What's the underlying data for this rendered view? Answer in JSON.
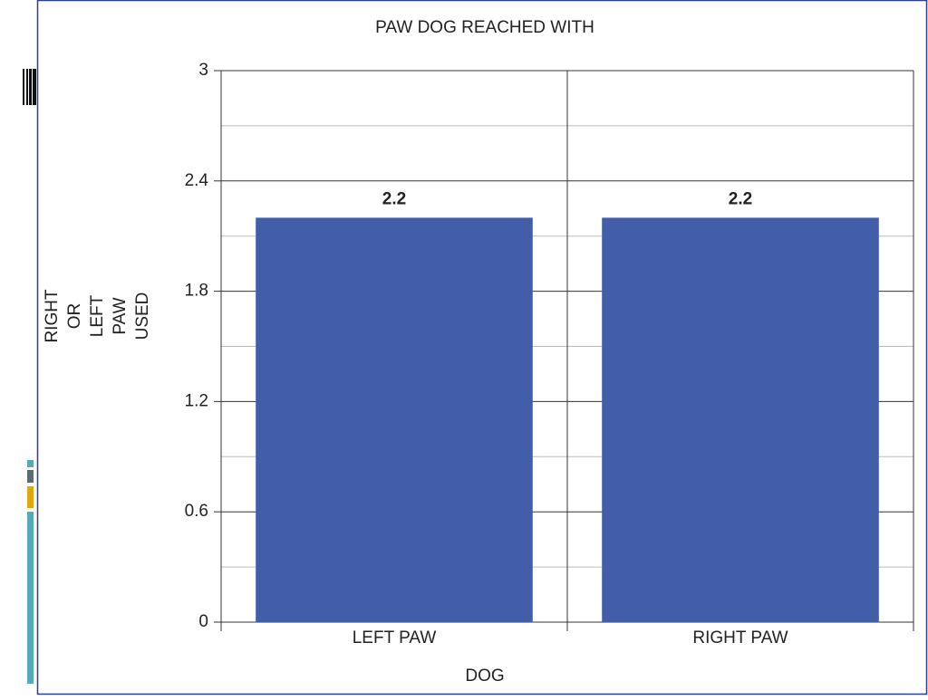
{
  "chart_data": {
    "type": "bar",
    "title": "PAW DOG REACHED WITH",
    "xlabel": "DOG",
    "ylabel": [
      "RIGHT",
      "OR",
      "LEFT",
      "PAW",
      "USED"
    ],
    "categories": [
      "LEFT PAW",
      "RIGHT PAW"
    ],
    "values": [
      2.2,
      2.2
    ],
    "color": "#435ea8",
    "ylim": [
      0,
      3
    ],
    "yticks": [
      0,
      0.6,
      1.2,
      1.8,
      2.4,
      3
    ],
    "minor_yticks": [
      0.3,
      0.9,
      1.5,
      2.1,
      2.7
    ],
    "grid": true
  }
}
